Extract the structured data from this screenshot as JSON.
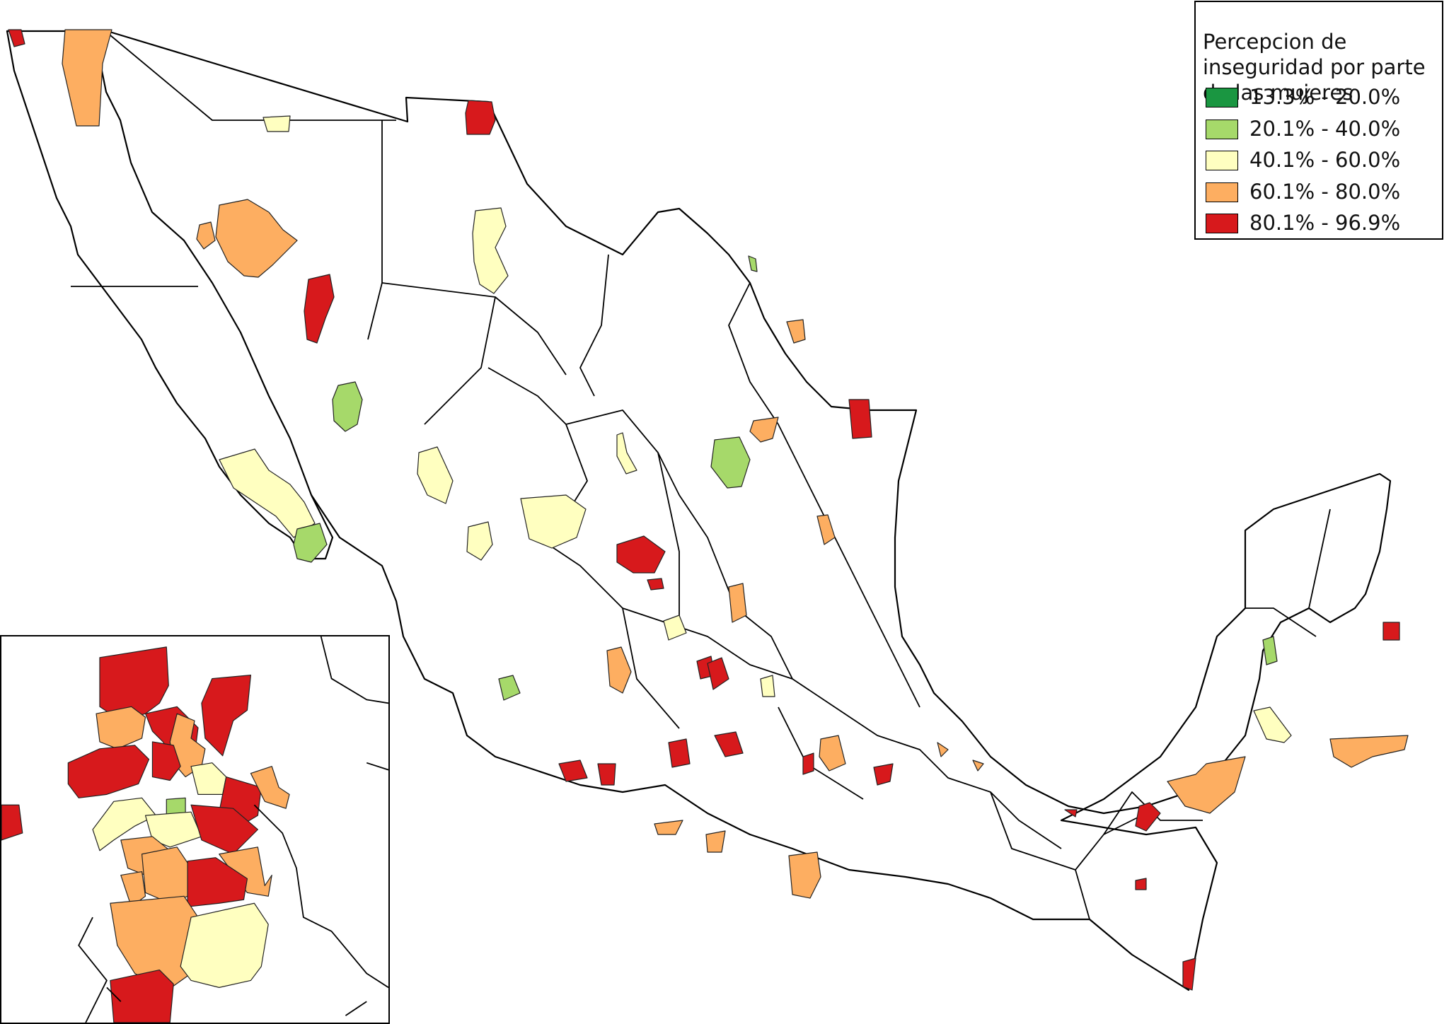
{
  "legend": {
    "title": "Percepcion de inseguridad por parte de las mujeres",
    "items": [
      {
        "label": "13.3% - 20.0%",
        "color": "#1a9641"
      },
      {
        "label": "20.1% - 40.0%",
        "color": "#a6d96a"
      },
      {
        "label": "40.1% - 60.0%",
        "color": "#ffffc0"
      },
      {
        "label": "60.1% - 80.0%",
        "color": "#fdae61"
      },
      {
        "label": "80.1% - 96.9%",
        "color": "#d7191c"
      }
    ]
  },
  "map": {
    "country": "Mexico",
    "boundary_color": "#000000",
    "background_color": "#ffffff"
  }
}
